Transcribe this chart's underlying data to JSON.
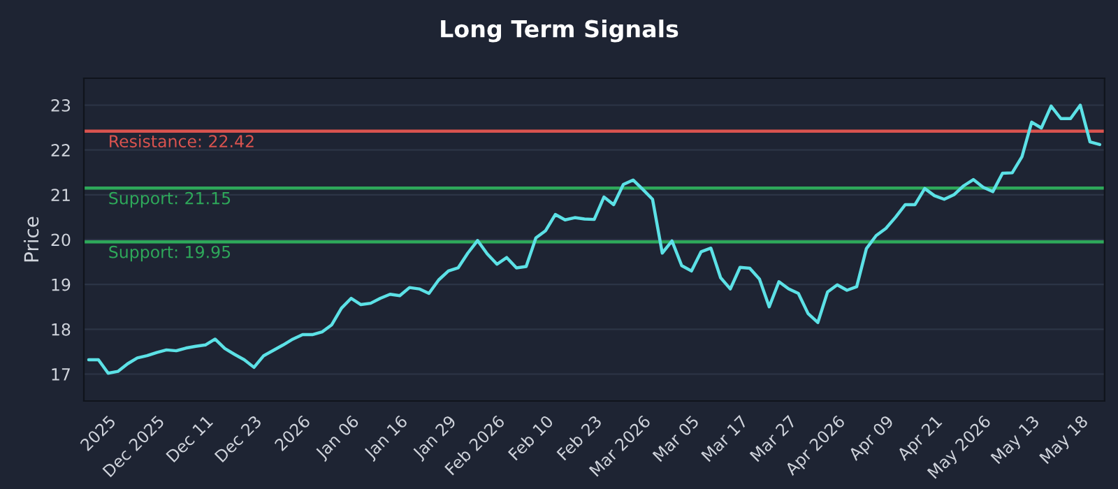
{
  "chart_data": {
    "type": "line",
    "title": "Long Term Signals",
    "ylabel": "Price",
    "categories": [
      null,
      null,
      "2025",
      null,
      null,
      null,
      null,
      "Dec 2025",
      null,
      null,
      null,
      null,
      "Dec 11",
      null,
      null,
      null,
      null,
      "Dec 23",
      null,
      null,
      null,
      null,
      "2026",
      null,
      null,
      null,
      null,
      "Jan 06",
      null,
      null,
      null,
      null,
      "Jan 16",
      null,
      null,
      null,
      null,
      "Jan 29",
      null,
      null,
      null,
      null,
      "Feb 2026",
      null,
      null,
      null,
      null,
      "Feb 10",
      null,
      null,
      null,
      null,
      "Feb 23",
      null,
      null,
      null,
      null,
      "Mar 2026",
      null,
      null,
      null,
      null,
      "Mar 05",
      null,
      null,
      null,
      null,
      "Mar 17",
      null,
      null,
      null,
      null,
      "Mar 27",
      null,
      null,
      null,
      null,
      "Apr 2026",
      null,
      null,
      null,
      null,
      "Apr 09",
      null,
      null,
      null,
      null,
      "Apr 21",
      null,
      null,
      null,
      null,
      "May 2026",
      null,
      null,
      null,
      null,
      "May 13",
      null,
      null,
      null,
      null,
      "May 18",
      null,
      null
    ],
    "series": [
      {
        "color": "#5ce1e6",
        "values": [
          17.32,
          17.32,
          17.02,
          17.06,
          17.23,
          17.36,
          17.41,
          17.48,
          17.54,
          17.52,
          17.58,
          17.62,
          17.65,
          17.78,
          17.57,
          17.44,
          17.32,
          17.15,
          17.41,
          17.53,
          17.65,
          17.78,
          17.88,
          17.88,
          17.94,
          18.1,
          18.47,
          18.69,
          18.55,
          18.58,
          18.69,
          18.78,
          18.75,
          18.93,
          18.9,
          18.8,
          19.1,
          19.3,
          19.37,
          19.7,
          19.98,
          19.68,
          19.45,
          19.6,
          19.37,
          19.4,
          20.04,
          20.2,
          20.56,
          20.44,
          20.49,
          20.46,
          20.45,
          20.95,
          20.78,
          21.23,
          21.33,
          21.12,
          20.9,
          19.7,
          19.97,
          19.42,
          19.3,
          19.73,
          19.81,
          19.15,
          18.9,
          19.38,
          19.36,
          19.12,
          18.5,
          19.06,
          18.9,
          18.8,
          18.35,
          18.15,
          18.83,
          18.99,
          18.87,
          18.95,
          19.8,
          20.09,
          20.25,
          20.5,
          20.78,
          20.78,
          21.14,
          20.98,
          20.9,
          21.0,
          21.2,
          21.34,
          21.17,
          21.07,
          21.48,
          21.49,
          21.85,
          22.62,
          22.49,
          22.98,
          22.7,
          22.7,
          23.0,
          22.18,
          22.12
        ]
      }
    ],
    "ylim": [
      16.4,
      23.6
    ],
    "yticks": [
      17,
      18,
      19,
      20,
      21,
      22,
      23
    ],
    "ref_lines": [
      {
        "axis": "y",
        "value": 22.42,
        "label": "Resistance: 22.42",
        "color": "#d9534f"
      },
      {
        "axis": "y",
        "value": 21.15,
        "label": "Support: 21.15",
        "color": "#2ea85a"
      },
      {
        "axis": "y",
        "value": 19.95,
        "label": "Support: 19.95",
        "color": "#2ea85a"
      }
    ],
    "grid": "y",
    "marker": "none",
    "line_style": "solid"
  }
}
